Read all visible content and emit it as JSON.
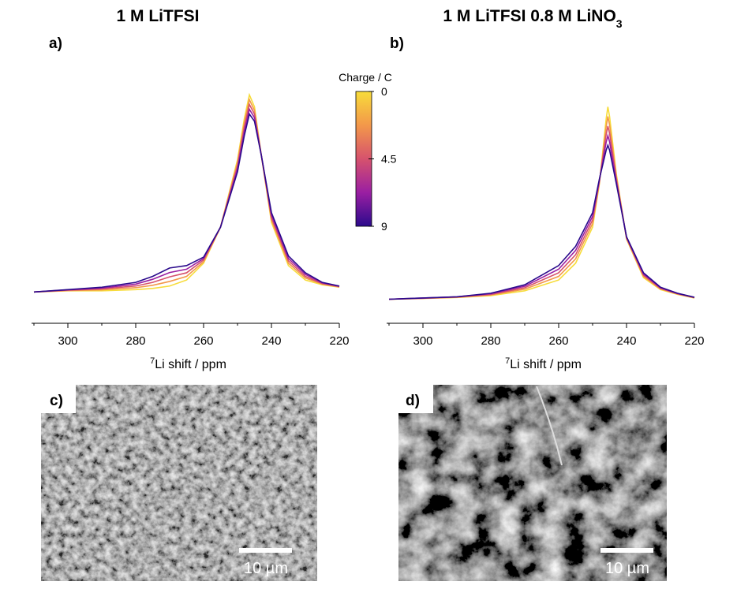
{
  "chart_data": [
    {
      "type": "line",
      "title": "1 M LiTFSI",
      "panel_label": "a)",
      "xlabel_sup": "7",
      "xlabel": "Li shift / ppm",
      "xlim": [
        310,
        220
      ],
      "xticks": [
        300,
        280,
        260,
        240,
        220
      ],
      "ylim": [
        0,
        100
      ],
      "x": [
        310,
        300,
        290,
        280,
        275,
        270,
        265,
        260,
        255,
        250,
        248,
        246.5,
        245,
        243,
        240,
        235,
        230,
        225,
        220
      ],
      "series": [
        {
          "color": "#f7dc3a",
          "values": [
            13,
            13.5,
            13.5,
            14,
            14.5,
            15.5,
            18,
            25,
            40,
            68,
            85,
            95,
            90,
            70,
            42,
            24,
            18,
            16,
            15
          ]
        },
        {
          "color": "#f3984a",
          "values": [
            13,
            13.6,
            13.9,
            14.8,
            15.8,
            17.4,
            19.5,
            25.6,
            40,
            66.8,
            83.3,
            93,
            88.5,
            70,
            43,
            25,
            18.8,
            16.3,
            15.1
          ]
        },
        {
          "color": "#d6526d",
          "values": [
            13,
            13.8,
            14.3,
            15.5,
            17,
            19.3,
            21,
            26.3,
            40,
            65.5,
            81.5,
            91,
            87,
            70,
            44,
            26,
            19.5,
            16.5,
            15.3
          ]
        },
        {
          "color": "#9a1fa2",
          "values": [
            13,
            13.9,
            14.6,
            16.3,
            18.3,
            21.1,
            22.5,
            26.9,
            40,
            64.3,
            79.8,
            89,
            85.5,
            70,
            45,
            27,
            20.3,
            16.8,
            15.4
          ]
        },
        {
          "color": "#2b0a8c",
          "values": [
            13,
            14,
            15,
            17,
            19.5,
            23,
            24,
            27.5,
            40,
            63,
            78,
            87,
            84,
            70,
            46,
            28,
            21,
            17,
            15.5
          ]
        }
      ]
    },
    {
      "type": "line",
      "title": "1 M LiTFSI 0.8 M LiNO",
      "title_sub": "3",
      "panel_label": "b)",
      "xlabel_sup": "7",
      "xlabel": "Li shift / ppm",
      "xlim": [
        310,
        220
      ],
      "xticks": [
        300,
        280,
        260,
        240,
        220
      ],
      "ylim": [
        0,
        100
      ],
      "x": [
        310,
        300,
        290,
        280,
        270,
        260,
        255,
        250,
        248,
        246,
        245.5,
        245,
        243,
        240,
        235,
        230,
        225,
        220
      ],
      "series": [
        {
          "color": "#f7dc3a",
          "values": [
            10,
            10.3,
            10.7,
            11.5,
            13.5,
            18,
            25,
            40,
            58,
            85,
            90,
            86,
            62,
            35,
            19,
            14,
            12,
            10.5
          ]
        },
        {
          "color": "#f3984a",
          "values": [
            10,
            10.4,
            10.8,
            11.8,
            14.2,
            19.5,
            26.8,
            41.5,
            58.5,
            81.8,
            86,
            82.5,
            61,
            35.3,
            19.5,
            14.3,
            12.2,
            10.6
          ]
        },
        {
          "color": "#d6526d",
          "values": [
            10,
            10.4,
            10.9,
            12,
            14.8,
            21,
            28.5,
            43,
            59,
            78.5,
            82,
            79,
            60,
            35.5,
            20,
            14.5,
            12.3,
            10.7
          ]
        },
        {
          "color": "#9a1fa2",
          "values": [
            10,
            10.5,
            11,
            12.3,
            15.4,
            22.5,
            30.3,
            44.5,
            59.5,
            75.3,
            78,
            75.5,
            59,
            35.8,
            20.5,
            14.8,
            12.4,
            10.8
          ]
        },
        {
          "color": "#2b0a8c",
          "values": [
            10,
            10.5,
            11,
            12.5,
            16,
            24,
            32,
            46,
            60,
            72,
            74,
            72,
            58,
            36,
            21,
            15,
            12.5,
            10.8
          ]
        }
      ]
    }
  ],
  "colorbar": {
    "label": "Charge / C",
    "lim": [
      0,
      9
    ],
    "ticks": [
      0,
      4.5,
      9
    ],
    "colors": [
      "#f7dc3a",
      "#f3984a",
      "#d6526d",
      "#9a1fa2",
      "#2b0a8c"
    ]
  },
  "images": [
    {
      "label": "c)",
      "scale_label": "10 µm"
    },
    {
      "label": "d)",
      "scale_label": "10 µm"
    }
  ]
}
